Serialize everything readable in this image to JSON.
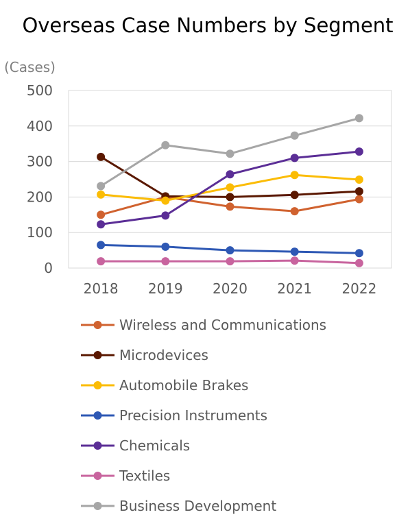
{
  "chart_data": {
    "type": "line",
    "title": "Overseas Case Numbers by Segment",
    "ylabel": "(Cases)",
    "xlabel": "",
    "categories": [
      "2018",
      "2019",
      "2020",
      "2021",
      "2022"
    ],
    "ylim": [
      0,
      500
    ],
    "yticks": [
      0,
      100,
      200,
      300,
      400,
      500
    ],
    "grid": true,
    "legend_position": "bottom",
    "series": [
      {
        "name": "Wireless and Communications",
        "color": "#d0622f",
        "values": [
          150,
          200,
          173,
          160,
          194
        ]
      },
      {
        "name": "Microdevices",
        "color": "#5a1800",
        "values": [
          313,
          202,
          200,
          206,
          216
        ]
      },
      {
        "name": "Automobile Brakes",
        "color": "#fbbc05",
        "values": [
          207,
          190,
          227,
          262,
          249
        ]
      },
      {
        "name": "Precision Instruments",
        "color": "#2e58b4",
        "values": [
          65,
          60,
          50,
          46,
          42
        ]
      },
      {
        "name": "Chemicals",
        "color": "#5b2e96",
        "values": [
          123,
          148,
          264,
          310,
          328
        ]
      },
      {
        "name": "Textiles",
        "color": "#c8649e",
        "values": [
          19,
          19,
          19,
          21,
          14
        ]
      },
      {
        "name": "Business Development",
        "color": "#a6a6a6",
        "values": [
          231,
          346,
          322,
          373,
          422
        ]
      }
    ]
  }
}
